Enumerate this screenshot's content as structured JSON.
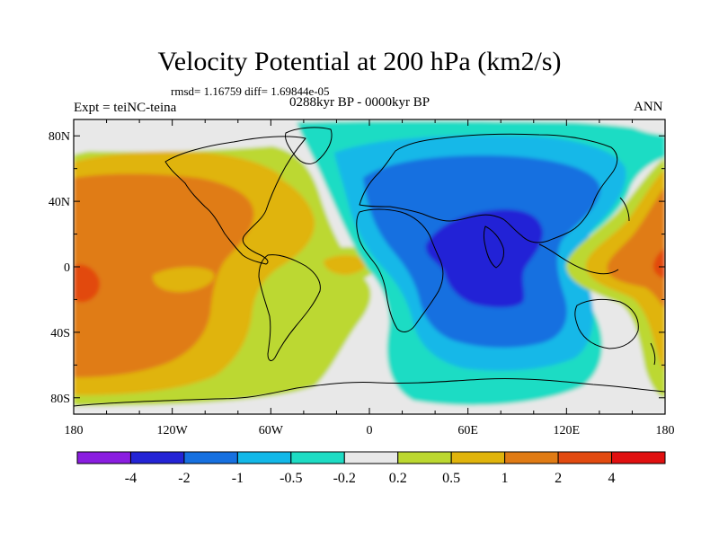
{
  "title": "Velocity Potential at 200 hPa (km2/s)",
  "stats": "rmsd= 1.16759 diff= 1.69844e-05",
  "left_label": "Expt = teiNC-teina",
  "center_label": "0288kyr BP - 0000kyr BP",
  "right_label": "ANN",
  "map": {
    "projection": "cylindrical equidistant",
    "lon_range": [
      -180,
      180
    ],
    "lat_range": [
      -90,
      90
    ],
    "lon_ticks": [
      "180",
      "120W",
      "60W",
      "0",
      "60E",
      "120E",
      "180"
    ],
    "lat_ticks": [
      "80N",
      "40N",
      "0",
      "40S",
      "80S"
    ],
    "lat_tick_values": [
      80,
      40,
      0,
      -40,
      -80
    ]
  },
  "colorbar": {
    "labels": [
      "-4",
      "-2",
      "-1",
      "-0.5",
      "-0.2",
      "0.2",
      "0.5",
      "1",
      "2",
      "4"
    ],
    "colors": [
      "#8a1de0",
      "#2424d6",
      "#1670e0",
      "#12b8e8",
      "#1edcc4",
      "#e8e8e8",
      "#bcd830",
      "#e0b40c",
      "#e07b14",
      "#e24a10",
      "#e01010"
    ]
  }
}
